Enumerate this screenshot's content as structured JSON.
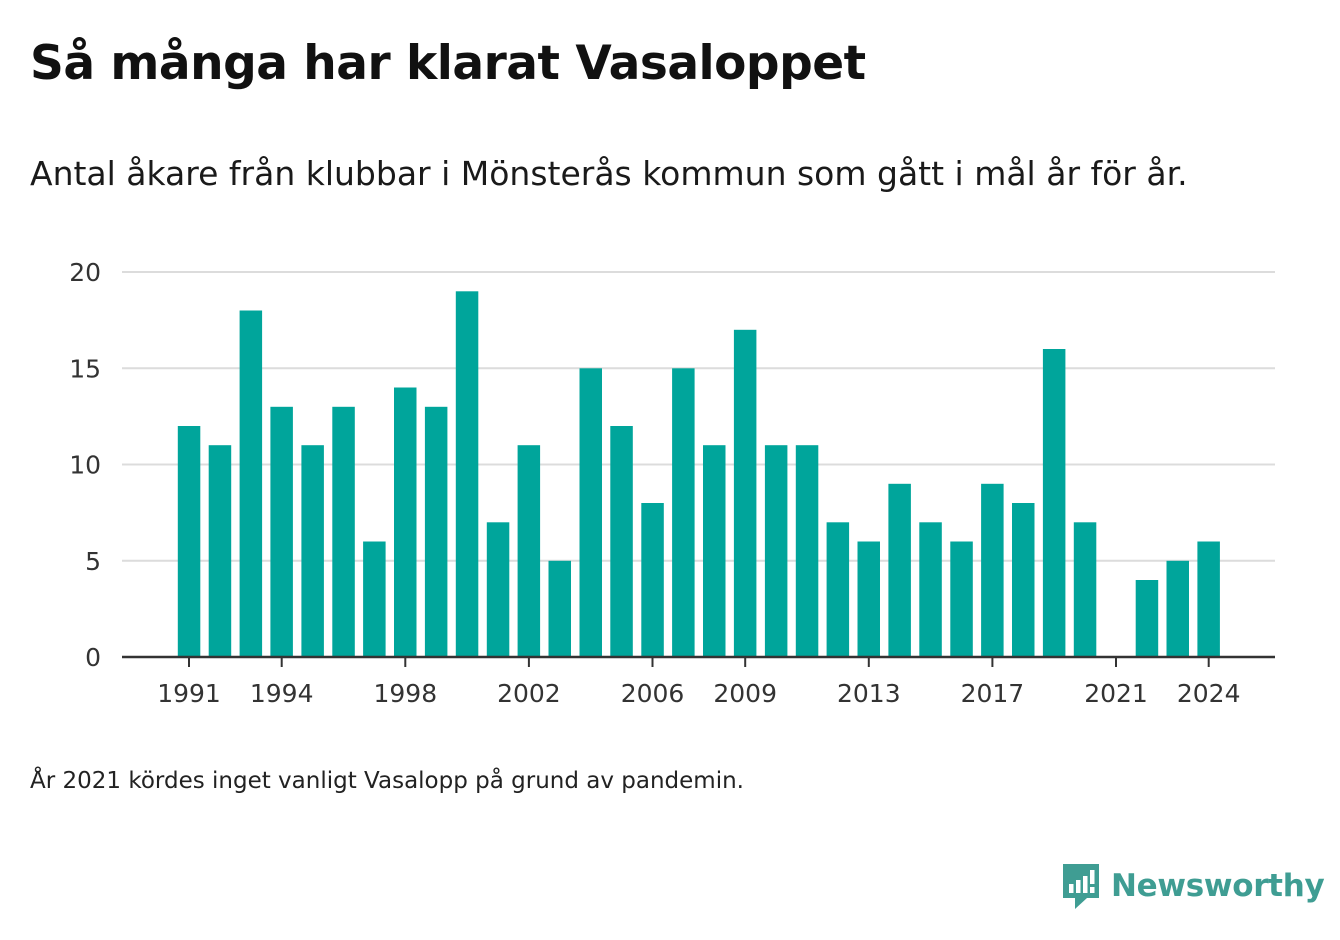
{
  "title": "Så många har klarat Vasaloppet",
  "subtitle": "Antal åkare från klubbar i Mönsterås kommun som gått i mål år för år.",
  "note": "År 2021 kördes inget vanligt Vasalopp på grund av pandemin.",
  "brand": {
    "name": "Newsworthy",
    "icon": "newsworthy-logo-icon",
    "color": "#3f9d93"
  },
  "chart_data": {
    "type": "bar",
    "bar_color": "#00a59b",
    "grid": true,
    "ylim": [
      0,
      20
    ],
    "y_ticks": [
      0,
      5,
      10,
      15,
      20
    ],
    "x_tick_labels": [
      1991,
      1994,
      1998,
      2002,
      2006,
      2009,
      2013,
      2017,
      2021,
      2024
    ],
    "x": [
      1991,
      1992,
      1993,
      1994,
      1995,
      1996,
      1997,
      1998,
      1999,
      2000,
      2001,
      2002,
      2003,
      2004,
      2005,
      2006,
      2007,
      2008,
      2009,
      2010,
      2011,
      2012,
      2013,
      2014,
      2015,
      2016,
      2017,
      2018,
      2019,
      2020,
      2021,
      2022,
      2023,
      2024
    ],
    "values": [
      12,
      11,
      18,
      13,
      11,
      13,
      6,
      14,
      13,
      19,
      7,
      11,
      5,
      15,
      12,
      8,
      15,
      11,
      17,
      11,
      11,
      7,
      6,
      9,
      7,
      6,
      9,
      8,
      16,
      7,
      null,
      4,
      5,
      6
    ]
  }
}
